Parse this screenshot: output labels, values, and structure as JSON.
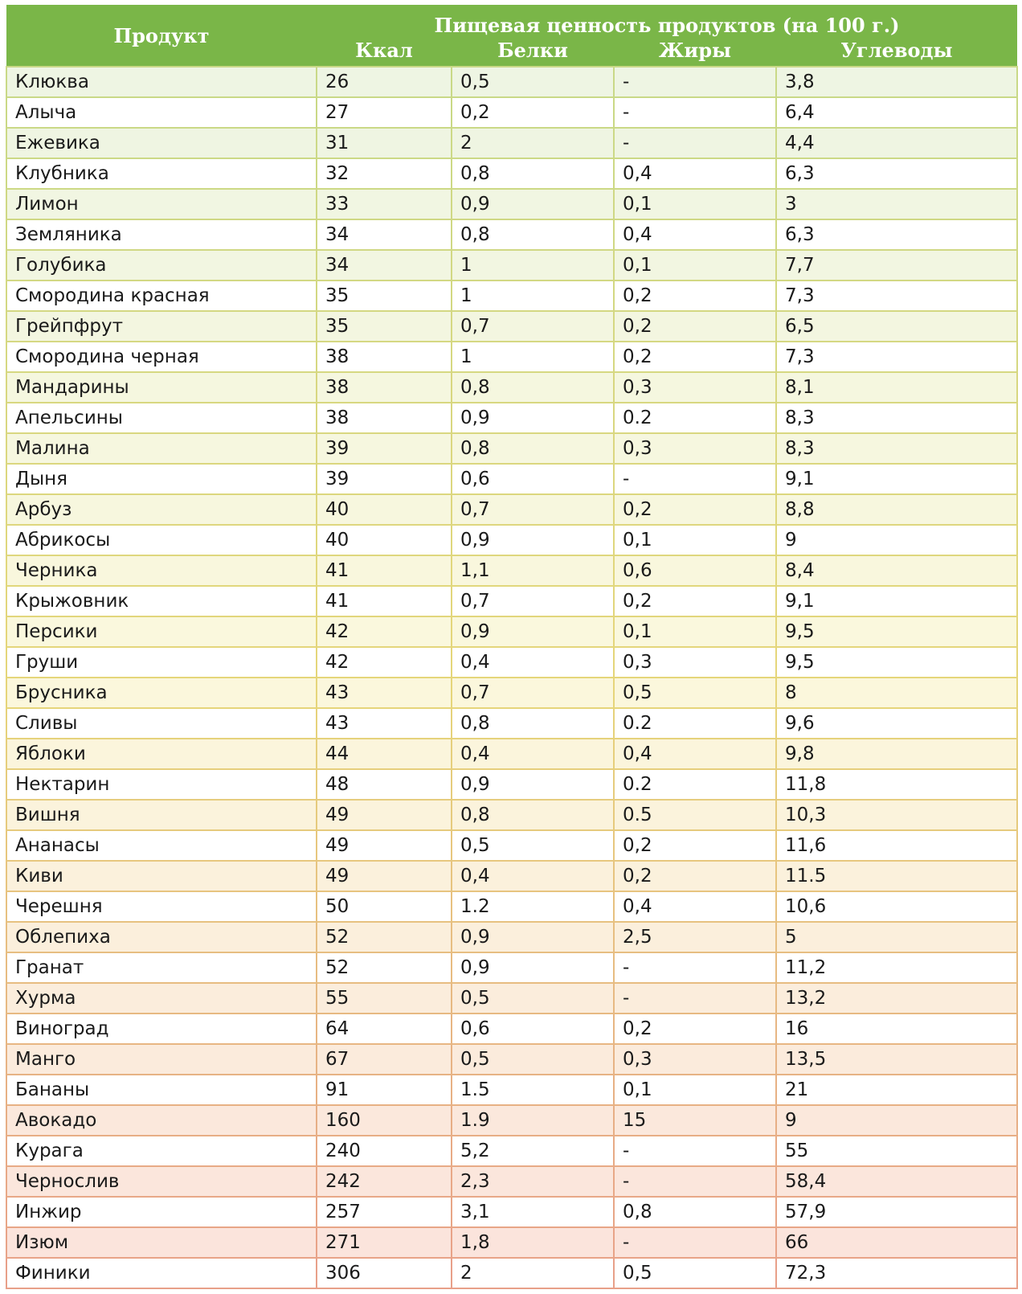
{
  "table": {
    "header": {
      "product": "Продукт",
      "group": "Пищевая ценность продуктов (на 100 г.)",
      "columns": [
        "Ккал",
        "Белки",
        "Жиры",
        "Углеводы"
      ]
    },
    "rows": [
      [
        "Клюква",
        "26",
        "0,5",
        "-",
        "3,8"
      ],
      [
        "Алыча",
        "27",
        "0,2",
        "-",
        "6,4"
      ],
      [
        "Ежевика",
        "31",
        "2",
        "-",
        "4,4"
      ],
      [
        "Клубника",
        "32",
        "0,8",
        "0,4",
        "6,3"
      ],
      [
        "Лимон",
        "33",
        "0,9",
        "0,1",
        "3"
      ],
      [
        "Земляника",
        "34",
        "0,8",
        "0,4",
        "6,3"
      ],
      [
        "Голубика",
        "34",
        "1",
        "0,1",
        "7,7"
      ],
      [
        "Смородина красная",
        "35",
        "1",
        "0,2",
        "7,3"
      ],
      [
        "Грейпфрут",
        "35",
        "0,7",
        "0,2",
        "6,5"
      ],
      [
        "Смородина черная",
        "38",
        "1",
        "0,2",
        "7,3"
      ],
      [
        "Мандарины",
        "38",
        "0,8",
        "0,3",
        "8,1"
      ],
      [
        "Апельсины",
        "38",
        "0,9",
        "0.2",
        "8,3"
      ],
      [
        "Малина",
        "39",
        "0,8",
        "0,3",
        "8,3"
      ],
      [
        "Дыня",
        "39",
        "0,6",
        "-",
        "9,1"
      ],
      [
        "Арбуз",
        "40",
        "0,7",
        "0,2",
        "8,8"
      ],
      [
        "Абрикосы",
        "40",
        "0,9",
        "0,1",
        "9"
      ],
      [
        "Черника",
        "41",
        "1,1",
        "0,6",
        "8,4"
      ],
      [
        "Крыжовник",
        "41",
        "0,7",
        "0,2",
        "9,1"
      ],
      [
        "Персики",
        "42",
        "0,9",
        "0,1",
        "9,5"
      ],
      [
        "Груши",
        "42",
        "0,4",
        "0,3",
        "9,5"
      ],
      [
        "Брусника",
        "43",
        "0,7",
        "0,5",
        "8"
      ],
      [
        "Сливы",
        "43",
        "0,8",
        "0.2",
        "9,6"
      ],
      [
        "Яблоки",
        "44",
        "0,4",
        "0,4",
        "9,8"
      ],
      [
        "Нектарин",
        "48",
        "0,9",
        "0.2",
        "11,8"
      ],
      [
        "Вишня",
        "49",
        "0,8",
        "0.5",
        "10,3"
      ],
      [
        "Ананасы",
        "49",
        "0,5",
        "0,2",
        "11,6"
      ],
      [
        "Киви",
        "49",
        "0,4",
        "0,2",
        "11.5"
      ],
      [
        "Черешня",
        "50",
        "1.2",
        "0,4",
        "10,6"
      ],
      [
        "Облепиха",
        "52",
        "0,9",
        "2,5",
        "5"
      ],
      [
        "Гранат",
        "52",
        "0,9",
        "-",
        "11,2"
      ],
      [
        "Хурма",
        "55",
        "0,5",
        "-",
        "13,2"
      ],
      [
        "Виноград",
        "64",
        "0,6",
        "0,2",
        "16"
      ],
      [
        "Манго",
        "67",
        "0,5",
        "0,3",
        "13,5"
      ],
      [
        "Бананы",
        "91",
        "1.5",
        "0,1",
        "21"
      ],
      [
        "Авокадо",
        "160",
        "1.9",
        "15",
        "9"
      ],
      [
        "Курага",
        "240",
        "5,2",
        "-",
        "55"
      ],
      [
        "Чернослив",
        "242",
        "2,3",
        "-",
        "58,4"
      ],
      [
        "Инжир",
        "257",
        "3,1",
        "0,8",
        "57,9"
      ],
      [
        "Изюм",
        "271",
        "1,8",
        "-",
        "66"
      ],
      [
        "Финики",
        "306",
        "2",
        "0,5",
        "72,3"
      ]
    ]
  },
  "colors": {
    "header_green": "#7ab648",
    "row_shade_top": "#eef5e3",
    "row_shade_middle": "#fbf8dc",
    "row_shade_bottom": "#fbe3dc",
    "border_top": "#c9d987",
    "border_middle": "#e6d67a",
    "border_bottom": "#e8a089"
  }
}
